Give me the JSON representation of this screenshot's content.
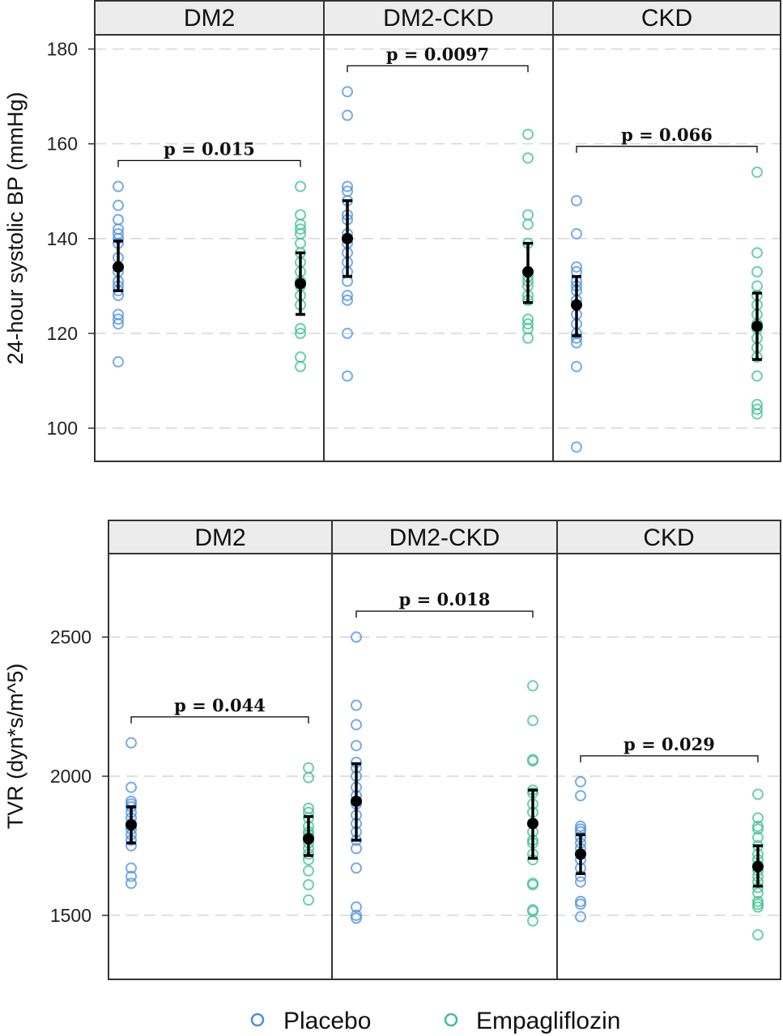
{
  "legend": {
    "items": [
      {
        "label": "Placebo",
        "color": "#4a90e2"
      },
      {
        "label": "Empagliflozin",
        "color": "#3cc08f"
      }
    ],
    "placement": "bottom"
  },
  "chart_data": [
    {
      "type": "scatter",
      "ylabel": "24-hour systolic BP (mmHg)",
      "ylim": [
        93,
        183
      ],
      "yticks": [
        100,
        120,
        140,
        160,
        180
      ],
      "grid": "horizontal-dashed",
      "panels": [
        {
          "title": "DM2",
          "pvalue": "p = 0.015",
          "series": [
            {
              "name": "Placebo",
              "values": [
                151,
                147,
                144,
                142,
                141,
                140,
                139,
                136,
                134,
                133,
                131,
                130,
                129,
                128,
                124,
                123,
                122,
                114
              ],
              "mean": 134,
              "ci": [
                129,
                139.5
              ]
            },
            {
              "name": "Empagliflozin",
              "values": [
                151,
                145,
                143,
                142,
                141,
                139,
                137,
                135,
                133,
                131,
                130,
                128,
                126,
                121,
                120,
                115,
                113
              ],
              "mean": 130.5,
              "ci": [
                124,
                137
              ]
            }
          ]
        },
        {
          "title": "DM2-CKD",
          "pvalue": "p = 0.0097",
          "series": [
            {
              "name": "Placebo",
              "values": [
                171,
                166,
                151,
                150,
                148,
                145,
                144,
                141,
                140,
                139,
                137,
                135,
                133,
                131,
                128,
                127,
                120,
                111
              ],
              "mean": 140,
              "ci": [
                132,
                148
              ]
            },
            {
              "name": "Empagliflozin",
              "values": [
                162,
                157,
                145,
                143,
                139,
                133,
                132,
                131,
                130,
                128,
                127,
                123,
                122,
                121,
                119
              ],
              "mean": 133,
              "ci": [
                126.5,
                139
              ]
            }
          ]
        },
        {
          "title": "CKD",
          "pvalue": "p = 0.066",
          "series": [
            {
              "name": "Placebo",
              "values": [
                148,
                141,
                134,
                133,
                131,
                130,
                129,
                127,
                126,
                124,
                122,
                120,
                119,
                118,
                113,
                96
              ],
              "mean": 126,
              "ci": [
                119.5,
                132
              ]
            },
            {
              "name": "Empagliflozin",
              "values": [
                154,
                137,
                133,
                130,
                128,
                126,
                124,
                122,
                121,
                119,
                117,
                115,
                111,
                105,
                104,
                103
              ],
              "mean": 121.5,
              "ci": [
                114.5,
                128.5
              ]
            }
          ]
        }
      ]
    },
    {
      "type": "scatter",
      "ylabel": "TVR (dyn*s/m^5)",
      "ylim": [
        1270,
        2800
      ],
      "yticks": [
        1500,
        2000,
        2500
      ],
      "grid": "horizontal-dashed",
      "panels": [
        {
          "title": "DM2",
          "pvalue": "p = 0.044",
          "series": [
            {
              "name": "Placebo",
              "values": [
                2120,
                1960,
                1910,
                1900,
                1890,
                1870,
                1850,
                1830,
                1810,
                1790,
                1770,
                1750,
                1670,
                1640,
                1615
              ],
              "mean": 1825,
              "ci": [
                1760,
                1890
              ]
            },
            {
              "name": "Empagliflozin",
              "values": [
                2030,
                1995,
                1885,
                1870,
                1850,
                1820,
                1800,
                1790,
                1780,
                1760,
                1740,
                1720,
                1700,
                1660,
                1610,
                1555
              ],
              "mean": 1775,
              "ci": [
                1715,
                1855
              ]
            }
          ]
        },
        {
          "title": "DM2-CKD",
          "pvalue": "p = 0.018",
          "series": [
            {
              "name": "Placebo",
              "values": [
                2500,
                2255,
                2185,
                2110,
                2050,
                2030,
                2000,
                1960,
                1930,
                1900,
                1860,
                1830,
                1800,
                1770,
                1740,
                1670,
                1530,
                1500,
                1490
              ],
              "mean": 1910,
              "ci": [
                1770,
                2045
              ]
            },
            {
              "name": "Empagliflozin",
              "values": [
                2325,
                2200,
                2060,
                2055,
                1950,
                1940,
                1900,
                1870,
                1830,
                1800,
                1770,
                1760,
                1720,
                1700,
                1615,
                1610,
                1520,
                1515,
                1480
              ],
              "mean": 1830,
              "ci": [
                1705,
                1950
              ]
            }
          ]
        },
        {
          "title": "CKD",
          "pvalue": "p = 0.029",
          "series": [
            {
              "name": "Placebo",
              "values": [
                1980,
                1930,
                1820,
                1810,
                1800,
                1780,
                1760,
                1740,
                1720,
                1700,
                1670,
                1640,
                1620,
                1550,
                1540,
                1495
              ],
              "mean": 1720,
              "ci": [
                1650,
                1790
              ]
            },
            {
              "name": "Empagliflozin",
              "values": [
                1935,
                1850,
                1820,
                1810,
                1780,
                1750,
                1720,
                1700,
                1680,
                1660,
                1640,
                1620,
                1600,
                1580,
                1550,
                1540,
                1530,
                1430
              ],
              "mean": 1675,
              "ci": [
                1605,
                1750
              ]
            }
          ]
        }
      ]
    }
  ]
}
